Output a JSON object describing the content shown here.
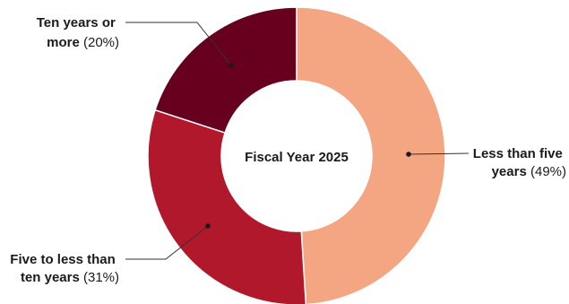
{
  "chart_data": {
    "type": "pie",
    "center_label": "Fiscal Year 2025",
    "slices": [
      {
        "name": "Less than five years",
        "value": 49,
        "color": "#F4A582",
        "label_lines": [
          {
            "bold": "Less than five",
            "normal": ""
          },
          {
            "bold": "years",
            "normal": " (49%)"
          }
        ]
      },
      {
        "name": "Five to less than ten years",
        "value": 31,
        "color": "#B2182B",
        "label_lines": [
          {
            "bold": "Five to less than",
            "normal": ""
          },
          {
            "bold": "ten years",
            "normal": " (31%)"
          }
        ]
      },
      {
        "name": "Ten years or more",
        "value": 20,
        "color": "#67001F",
        "label_lines": [
          {
            "bold": "Ten years or",
            "normal": ""
          },
          {
            "bold": "more",
            "normal": " (20%)"
          }
        ]
      }
    ]
  }
}
